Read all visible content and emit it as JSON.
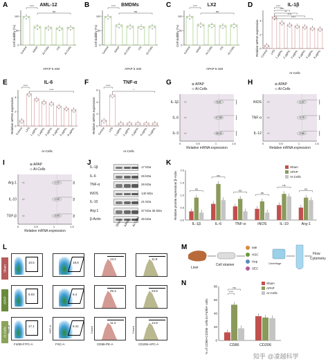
{
  "colors": {
    "green_bar": "#7ab648",
    "dark_bar": "#c97b7b",
    "sham": "#c0504d",
    "apap": "#8a9a5b",
    "alcells": "#c4c4c4",
    "violin_shade": "#ece4ec"
  },
  "panelA": {
    "label": "A",
    "title": "AML-12",
    "ylabel": "Cell viability (%)",
    "xlabel": "APAP 5 mM",
    "categories": [
      "Control",
      "APAP",
      "AI-Cells",
      "ITA",
      "AI-Cells"
    ],
    "values": [
      100,
      65,
      62,
      60,
      62
    ],
    "sig_top": "****",
    "ns": "ns"
  },
  "panelB": {
    "label": "B",
    "title": "BMDMs",
    "ylabel": "Cell viability (%)",
    "xlabel": "APAP 5 mM",
    "categories": [
      "Control",
      "APAP",
      "AI-Cells",
      "ITA",
      "AI-Cells"
    ],
    "values": [
      100,
      70,
      66,
      64,
      66
    ],
    "sig_top": "****",
    "ns": "ns"
  },
  "panelC": {
    "label": "C",
    "title": "LX2",
    "ylabel": "Cell viability (%)",
    "xlabel": "APAP 5 mM",
    "categories": [
      "Control",
      "APAP",
      "AI-Cells",
      "ITA",
      "AI-Cells"
    ],
    "values": [
      100,
      72,
      70,
      68,
      70
    ],
    "sig_top": "****",
    "ns": "ns"
  },
  "panelD": {
    "label": "D",
    "title": "IL-1β",
    "ylabel": "Relative mRNA expression",
    "xlabel": "AI-Cells",
    "categories": [
      "Control",
      "LPS",
      "1 μg/mL",
      "2 μg/mL",
      "3 μg/mL",
      "4 μg/mL",
      "5 μg/mL",
      "6 μg/mL"
    ],
    "values": [
      0.5,
      4.6,
      3.8,
      3.5,
      3.3,
      3.2,
      3.0,
      2.9
    ],
    "sigs": [
      "****",
      "****",
      "**",
      "****",
      "****"
    ]
  },
  "panelE": {
    "label": "E",
    "title": "IL-6",
    "ylabel": "Relative mRNA expression",
    "xlabel": "AI-Cells",
    "categories": [
      "Control",
      "LPS",
      "1 μg/mL",
      "2 μg/mL",
      "3 μg/mL",
      "4 μg/mL",
      "5 μg/mL",
      "6 μg/mL"
    ],
    "values": [
      0.8,
      4.5,
      3.8,
      3.4,
      3.2,
      2.8,
      2.5,
      2.3
    ],
    "sigs": [
      "****",
      "****"
    ]
  },
  "panelF": {
    "label": "F",
    "title": "TNF-α",
    "ylabel": "Relative mRNA expression",
    "xlabel": "AI-Cells",
    "categories": [
      "Control",
      "LPS",
      "1 μg/mL",
      "2 μg/mL",
      "3 μg/mL",
      "4 μg/mL",
      "5 μg/mL"
    ],
    "values": [
      1.0,
      5.2,
      0.5,
      0.5,
      0.5,
      0.5,
      0.5
    ],
    "sigs": [
      "****",
      "*"
    ]
  },
  "panelG": {
    "label": "G",
    "legend": [
      "APAP",
      "AI-Cells"
    ],
    "rows": [
      "IL-1β",
      "IL-6",
      "IL-3"
    ],
    "xlabel": "Relative mRNA expression",
    "stars": [
      "****",
      "****",
      "****"
    ],
    "fold": [
      "5.61",
      "17.65",
      "26.31"
    ]
  },
  "panelH": {
    "label": "H",
    "legend": [
      "APAP",
      "AI-Cells"
    ],
    "rows": [
      "iNOS",
      "TNF-α",
      "IL-12"
    ],
    "xlabel": "Relative mRNA expression",
    "stars": [
      "****",
      "****",
      "****"
    ],
    "fold": [
      "2.22",
      "3.76",
      "2.58"
    ]
  },
  "panelI": {
    "label": "I",
    "legend": [
      "APAP",
      "AI-Cells"
    ],
    "rows": [
      "Arg-1",
      "IL-10",
      "TGF-β"
    ],
    "xlabel": "Relative mRNA expression",
    "stars": [
      "ns",
      "ns",
      "ns"
    ],
    "fold": [
      "1.12",
      "1.09",
      "0.99"
    ]
  },
  "panelJ": {
    "label": "J",
    "rows": [
      {
        "name": "IL-1β",
        "kda": "17 kDa"
      },
      {
        "name": "IL-6",
        "kda": "26 kDa"
      },
      {
        "name": "TNF-α",
        "kda": "26 kDa"
      },
      {
        "name": "iNOS",
        "kda": "140 kDa"
      },
      {
        "name": "IL-10",
        "kda": "21 kDa"
      },
      {
        "name": "Arg-1",
        "kda": "37 kDa 35 kDa"
      },
      {
        "name": "β-Actin",
        "kda": "45 kDa"
      }
    ],
    "lanes": [
      "Sham",
      "APAP",
      "AI-Cells"
    ]
  },
  "panelK": {
    "label": "K",
    "ylabel": "Relative protein expression/ β-Actin",
    "legend": [
      "Sham",
      "APAP",
      "AI-Cells"
    ],
    "chart_data": {
      "type": "bar",
      "categories": [
        "IL-1β",
        "IL-6",
        "TNF-α",
        "iNOS",
        "IL-10",
        "Arg-1"
      ],
      "series": [
        {
          "name": "Sham",
          "values": [
            0.35,
            0.65,
            0.55,
            0.45,
            0.6,
            0.5
          ]
        },
        {
          "name": "APAP",
          "values": [
            0.9,
            1.45,
            0.85,
            0.75,
            1.05,
            0.9
          ]
        },
        {
          "name": "AI-Cells",
          "values": [
            0.3,
            0.8,
            0.35,
            0.3,
            0.95,
            0.8
          ]
        }
      ],
      "ylim": [
        0,
        2.0
      ],
      "ns": [
        "ns",
        "ns",
        "ns",
        "ns",
        "ns",
        "ns"
      ]
    }
  },
  "panelL": {
    "label": "L",
    "row_tags": [
      "Sham",
      "APAP",
      "AI-Cells"
    ],
    "xlabels": [
      "F4/80-FITC-A",
      "FSC-A",
      "CD86-PE-A",
      "CD206-APC-A"
    ],
    "ylabels": [
      "SSC-A",
      "SSC-A",
      "Count",
      "Count"
    ],
    "gates": [
      [
        "10.5",
        "18.6",
        "13.2",
        "11.8"
      ],
      [
        "9.03",
        "8.4",
        "25.4",
        "23.8"
      ],
      [
        "17.1",
        "8.41",
        "11.4",
        "14.8"
      ]
    ]
  },
  "panelM": {
    "label": "M",
    "labels": [
      "Liver",
      "Cell strainer",
      "MΦ",
      "HSC",
      "Hep",
      "SEC",
      "Flow Cytometry",
      "Centrifuge"
    ]
  },
  "panelN": {
    "label": "N",
    "legend": [
      "Sham",
      "APAP",
      "AI-Cells"
    ],
    "ylabel": "% of CD86+CD206- cells in F4/80+ cells",
    "chart_data": {
      "type": "bar",
      "categories": [
        "CD86",
        "CD206"
      ],
      "series": [
        {
          "name": "Sham",
          "values": [
            12,
            36
          ]
        },
        {
          "name": "APAP",
          "values": [
            53,
            34
          ]
        },
        {
          "name": "AI-Cells",
          "values": [
            18,
            33
          ]
        }
      ],
      "ylim": [
        0,
        80
      ],
      "sigs": [
        "ns",
        "****"
      ]
    }
  },
  "watermark": "知乎 @凌越科学",
  "graphic": "graphic-text"
}
